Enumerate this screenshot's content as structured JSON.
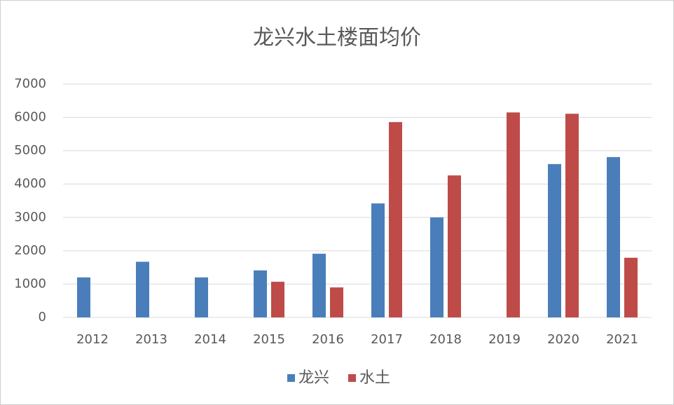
{
  "chart_data": {
    "type": "bar",
    "title": "龙兴水土楼面均价",
    "categories": [
      "2012",
      "2013",
      "2014",
      "2015",
      "2016",
      "2017",
      "2018",
      "2019",
      "2020",
      "2021"
    ],
    "series": [
      {
        "name": "龙兴",
        "color": "#4a7ebb",
        "values": [
          1200,
          1670,
          1200,
          1410,
          1910,
          3420,
          3000,
          null,
          4600,
          4810
        ]
      },
      {
        "name": "水土",
        "color": "#be4b48",
        "values": [
          null,
          null,
          null,
          1070,
          900,
          5860,
          4260,
          6150,
          6110,
          1790
        ]
      }
    ],
    "ylim": [
      0,
      7000
    ],
    "yticks": [
      0,
      1000,
      2000,
      3000,
      4000,
      5000,
      6000,
      7000
    ],
    "grid": true,
    "legend": "bottom"
  }
}
